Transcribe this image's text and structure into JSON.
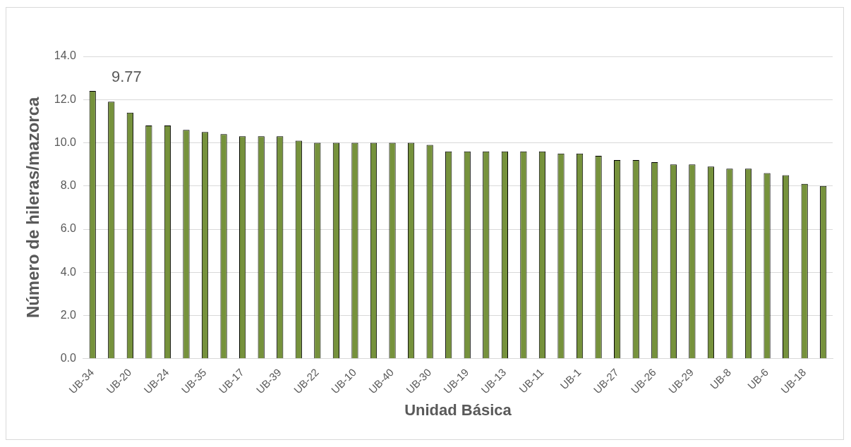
{
  "chart_data": {
    "type": "bar",
    "categories": [
      "UB-34",
      null,
      "UB-20",
      null,
      "UB-24",
      null,
      "UB-35",
      null,
      "UB-17",
      null,
      "UB-39",
      null,
      "UB-22",
      null,
      "UB-10",
      null,
      "UB-40",
      null,
      "UB-30",
      null,
      "UB-19",
      null,
      "UB-13",
      null,
      "UB-11",
      null,
      "UB-1",
      null,
      "UB-27",
      null,
      "UB-26",
      null,
      "UB-29",
      null,
      "UB-8",
      null,
      "UB-6",
      null,
      "UB-18",
      null
    ],
    "values": [
      12.4,
      11.9,
      11.4,
      10.8,
      10.8,
      10.6,
      10.5,
      10.4,
      10.3,
      10.3,
      10.3,
      10.1,
      10.0,
      10.0,
      10.0,
      10.0,
      10.0,
      10.0,
      9.9,
      9.6,
      9.6,
      9.6,
      9.6,
      9.6,
      9.6,
      9.5,
      9.5,
      9.4,
      9.2,
      9.2,
      9.1,
      9.0,
      9.0,
      8.9,
      8.8,
      8.8,
      8.6,
      8.5,
      8.1,
      8.0
    ],
    "color": "#76923c",
    "xlabel": "Unidad Básica",
    "ylabel": "Número de hileras/mazorca",
    "ylim": [
      0,
      14
    ],
    "yticks": [
      {
        "value": 0,
        "label": "0.0"
      },
      {
        "value": 2,
        "label": "2.0"
      },
      {
        "value": 4,
        "label": "4.0"
      },
      {
        "value": 6,
        "label": "6.0"
      },
      {
        "value": 8,
        "label": "8.0"
      },
      {
        "value": 10,
        "label": "10.0"
      },
      {
        "value": 12,
        "label": "12.0"
      },
      {
        "value": 14,
        "label": "14.0"
      }
    ],
    "grid": "y",
    "legend": false,
    "annotations": [
      "9.77"
    ]
  }
}
